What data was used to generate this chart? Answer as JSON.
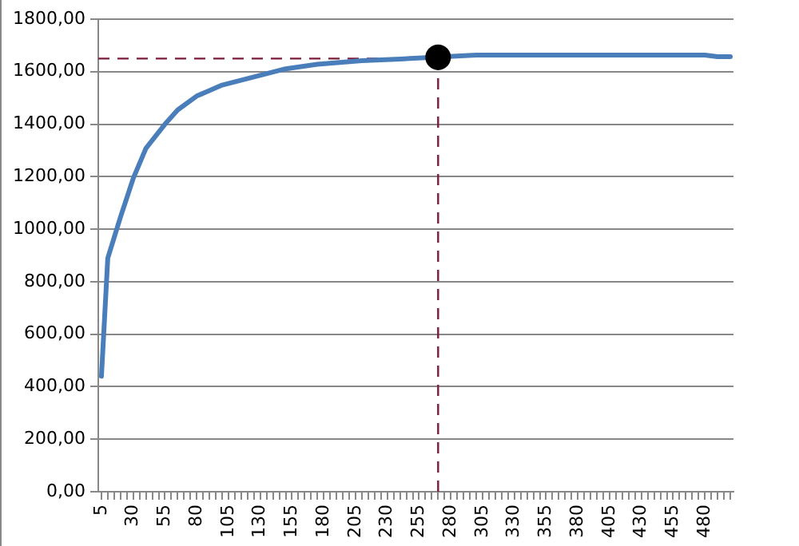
{
  "chart_data": {
    "type": "line",
    "x": [
      5,
      10,
      20,
      30,
      40,
      55,
      65,
      80,
      100,
      125,
      150,
      175,
      210,
      240,
      270,
      300,
      480,
      490,
      500
    ],
    "series": [
      {
        "color": "#4a7ebb",
        "values": [
          440,
          890,
          1046,
          1193,
          1308,
          1400,
          1454,
          1507,
          1549,
          1580,
          1611,
          1628,
          1642,
          1648,
          null,
          1663,
          1663,
          1657,
          1657
        ]
      },
      {
        "type": "scatter",
        "color": "#000000",
        "x": [
          270
        ],
        "values": [
          1655
        ]
      }
    ],
    "xlim": [
      2.5,
      502.5
    ],
    "xticks": [
      5,
      {
        "value": 10,
        "label": null
      },
      {
        "value": 15,
        "label": null
      },
      {
        "value": 20,
        "label": null
      },
      {
        "value": 25,
        "label": null
      },
      30,
      {
        "value": 35,
        "label": null
      },
      {
        "value": 40,
        "label": null
      },
      {
        "value": 45,
        "label": null
      },
      {
        "value": 50,
        "label": null
      },
      55,
      {
        "value": 60,
        "label": null
      },
      {
        "value": 65,
        "label": null
      },
      {
        "value": 70,
        "label": null
      },
      {
        "value": 75,
        "label": null
      },
      80,
      {
        "value": 85,
        "label": null
      },
      {
        "value": 90,
        "label": null
      },
      {
        "value": 95,
        "label": null
      },
      {
        "value": 100,
        "label": null
      },
      105,
      {
        "value": 110,
        "label": null
      },
      {
        "value": 115,
        "label": null
      },
      {
        "value": 120,
        "label": null
      },
      {
        "value": 125,
        "label": null
      },
      130,
      {
        "value": 135,
        "label": null
      },
      {
        "value": 140,
        "label": null
      },
      {
        "value": 145,
        "label": null
      },
      {
        "value": 150,
        "label": null
      },
      155,
      {
        "value": 160,
        "label": null
      },
      {
        "value": 165,
        "label": null
      },
      {
        "value": 170,
        "label": null
      },
      {
        "value": 175,
        "label": null
      },
      180,
      {
        "value": 185,
        "label": null
      },
      {
        "value": 190,
        "label": null
      },
      {
        "value": 195,
        "label": null
      },
      {
        "value": 200,
        "label": null
      },
      205,
      {
        "value": 210,
        "label": null
      },
      {
        "value": 215,
        "label": null
      },
      {
        "value": 220,
        "label": null
      },
      {
        "value": 225,
        "label": null
      },
      230,
      {
        "value": 235,
        "label": null
      },
      {
        "value": 240,
        "label": null
      },
      {
        "value": 245,
        "label": null
      },
      {
        "value": 250,
        "label": null
      },
      255,
      {
        "value": 260,
        "label": null
      },
      {
        "value": 265,
        "label": null
      },
      {
        "value": 270,
        "label": null
      },
      {
        "value": 275,
        "label": null
      },
      280,
      {
        "value": 285,
        "label": null
      },
      {
        "value": 290,
        "label": null
      },
      {
        "value": 295,
        "label": null
      },
      {
        "value": 300,
        "label": null
      },
      305,
      {
        "value": 310,
        "label": null
      },
      {
        "value": 315,
        "label": null
      },
      {
        "value": 320,
        "label": null
      },
      {
        "value": 325,
        "label": null
      },
      330,
      {
        "value": 335,
        "label": null
      },
      {
        "value": 340,
        "label": null
      },
      {
        "value": 345,
        "label": null
      },
      {
        "value": 350,
        "label": null
      },
      355,
      {
        "value": 360,
        "label": null
      },
      {
        "value": 365,
        "label": null
      },
      {
        "value": 370,
        "label": null
      },
      {
        "value": 375,
        "label": null
      },
      380,
      {
        "value": 385,
        "label": null
      },
      {
        "value": 390,
        "label": null
      },
      {
        "value": 395,
        "label": null
      },
      {
        "value": 400,
        "label": null
      },
      405,
      {
        "value": 410,
        "label": null
      },
      {
        "value": 415,
        "label": null
      },
      {
        "value": 420,
        "label": null
      },
      {
        "value": 425,
        "label": null
      },
      430,
      {
        "value": 435,
        "label": null
      },
      {
        "value": 440,
        "label": null
      },
      {
        "value": 445,
        "label": null
      },
      {
        "value": 450,
        "label": null
      },
      455,
      {
        "value": 460,
        "label": null
      },
      {
        "value": 465,
        "label": null
      },
      {
        "value": 470,
        "label": null
      },
      {
        "value": 475,
        "label": null
      },
      480,
      {
        "value": 485,
        "label": null
      },
      {
        "value": 490,
        "label": null
      },
      {
        "value": 495,
        "label": null
      },
      {
        "value": 500,
        "label": null
      }
    ],
    "ylim": [
      0,
      1800
    ],
    "yticks": [
      {
        "value": 0,
        "label": "0,00"
      },
      {
        "value": 200,
        "label": "200,00"
      },
      {
        "value": 400,
        "label": "400,00"
      },
      {
        "value": 600,
        "label": "600,00"
      },
      {
        "value": 800,
        "label": "800,00"
      },
      {
        "value": 1000,
        "label": "1000,00"
      },
      {
        "value": 1200,
        "label": "1200,00"
      },
      {
        "value": 1400,
        "label": "1400,00"
      },
      {
        "value": 1600,
        "label": "1600,00"
      },
      {
        "value": 1800,
        "label": "1800,00"
      }
    ],
    "ref_lines": [
      {
        "axis": "y",
        "value": 1650,
        "color": "#7b1c3c",
        "line_style": "dashed"
      },
      {
        "axis": "x",
        "value": 270,
        "color": "#7b1c3c",
        "line_style": "dashed"
      }
    ],
    "grid": "y",
    "legend": false
  }
}
